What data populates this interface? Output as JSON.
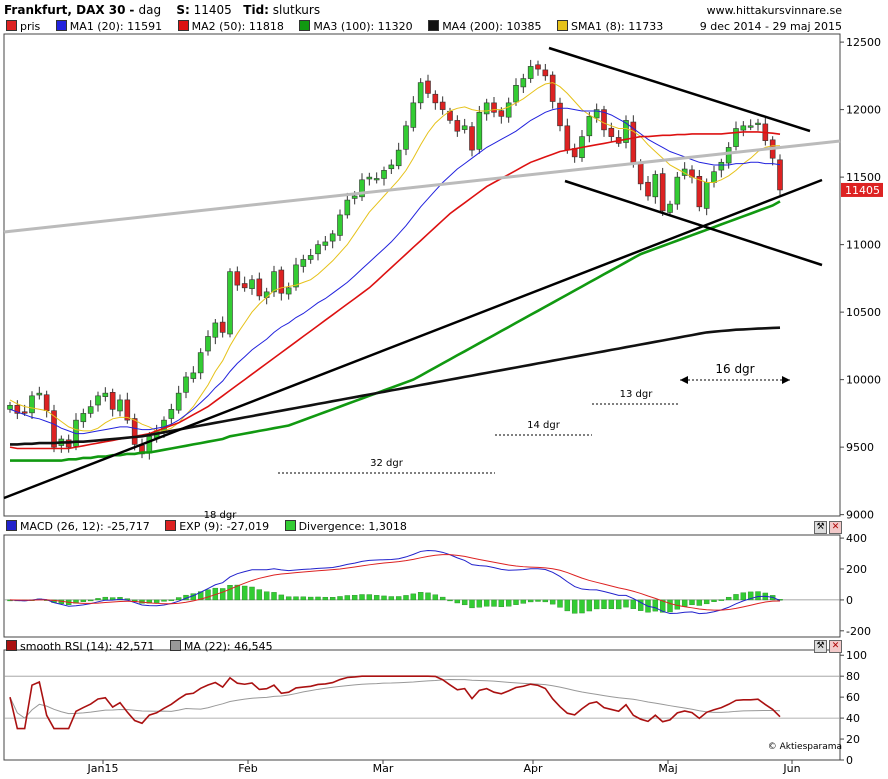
{
  "header": {
    "instrument": "Frankfurt, DAX 30",
    "interval_label": "dag",
    "close_label": "S:",
    "close_value": "11405",
    "time_label": "Tid:",
    "time_value": "slutkurs",
    "site": "www.hittakursvinnare.se",
    "date_range": "9 dec 2014 - 29 maj 2015"
  },
  "legend": {
    "price": "pris",
    "ma1": "MA1 (20): 11591",
    "ma2": "MA2 (50): 11818",
    "ma3": "MA3 (100): 11320",
    "ma4": "MA4 (200): 10385",
    "sma1": "SMA1 (8): 11733"
  },
  "colors": {
    "up_candle": "#33cc33",
    "down_candle": "#dd2222",
    "ma1": "#2222dd",
    "ma2": "#dd1111",
    "ma3": "#119911",
    "ma4": "#111111",
    "sma1": "#e6c21a",
    "macd": "#2222cc",
    "exp": "#dd2222",
    "divergence": "#33cc33",
    "rsi": "#aa1111",
    "rsi_ma": "#999999",
    "last_price_tag": "#dd2222"
  },
  "chart_data": [
    {
      "type": "candlestick",
      "panel": "price",
      "y_ticks": [
        9000,
        9500,
        10000,
        10500,
        11000,
        11500,
        12000,
        12500
      ],
      "ylim": [
        8990,
        12560
      ],
      "x_ticks": [
        "Jan15",
        "Feb",
        "Mar",
        "Apr",
        "Maj",
        "Jun"
      ],
      "last_price": "11405",
      "close": [
        9810,
        9750,
        9760,
        9880,
        9900,
        9770,
        9500,
        9560,
        9500,
        9700,
        9750,
        9800,
        9880,
        9900,
        9780,
        9850,
        9700,
        9520,
        9450,
        9580,
        9620,
        9700,
        9780,
        9900,
        10020,
        10050,
        10200,
        10320,
        10420,
        10350,
        10800,
        10700,
        10680,
        10740,
        10620,
        10650,
        10800,
        10640,
        10680,
        10850,
        10890,
        10920,
        11000,
        11020,
        11080,
        11220,
        11330,
        11360,
        11480,
        11500,
        11490,
        11550,
        11590,
        11700,
        11880,
        12050,
        12200,
        12120,
        12050,
        12000,
        11920,
        11840,
        11880,
        11700,
        11980,
        12050,
        11980,
        11950,
        12050,
        12180,
        12230,
        12320,
        12300,
        12250,
        12060,
        11880,
        11700,
        11650,
        11800,
        11950,
        12000,
        11850,
        11800,
        11750,
        11920,
        11600,
        11450,
        11360,
        11520,
        11250,
        11300,
        11500,
        11560,
        11500,
        11280,
        11460,
        11540,
        11610,
        11720,
        11860,
        11880,
        11880,
        11900,
        11770,
        11640,
        11405
      ],
      "ma1": [
        9780,
        9760,
        9740,
        9720,
        9710,
        9690,
        9670,
        9640,
        9620,
        9600,
        9600,
        9610,
        9620,
        9630,
        9640,
        9650,
        9650,
        9640,
        9630,
        9630,
        9640,
        9650,
        9670,
        9700,
        9740,
        9780,
        9830,
        9880,
        9940,
        9990,
        10060,
        10120,
        10170,
        10220,
        10260,
        10300,
        10350,
        10390,
        10420,
        10460,
        10490,
        10530,
        10570,
        10600,
        10640,
        10680,
        10720,
        10770,
        10820,
        10870,
        10920,
        10970,
        11020,
        11080,
        11140,
        11210,
        11280,
        11340,
        11400,
        11460,
        11510,
        11560,
        11600,
        11640,
        11680,
        11720,
        11750,
        11780,
        11810,
        11840,
        11880,
        11920,
        11950,
        11980,
        12000,
        12010,
        12010,
        12000,
        11990,
        11990,
        11990,
        11980,
        11960,
        11930,
        11900,
        11860,
        11820,
        11780,
        11750,
        11720,
        11690,
        11670,
        11650,
        11630,
        11610,
        11600,
        11590,
        11590,
        11590,
        11600,
        11600,
        11610,
        11610,
        11600,
        11600,
        11591
      ],
      "ma2": [
        9500,
        9490,
        9490,
        9490,
        9490,
        9490,
        9490,
        9490,
        9490,
        9500,
        9510,
        9520,
        9530,
        9540,
        9550,
        9560,
        9570,
        9580,
        9590,
        9600,
        9620,
        9640,
        9660,
        9680,
        9710,
        9740,
        9770,
        9800,
        9840,
        9880,
        9920,
        9960,
        10000,
        10040,
        10080,
        10120,
        10160,
        10200,
        10240,
        10280,
        10320,
        10360,
        10400,
        10440,
        10480,
        10520,
        10560,
        10600,
        10640,
        10680,
        10730,
        10780,
        10830,
        10880,
        10930,
        10980,
        11030,
        11080,
        11130,
        11180,
        11230,
        11270,
        11310,
        11350,
        11390,
        11430,
        11460,
        11490,
        11520,
        11550,
        11580,
        11610,
        11630,
        11650,
        11670,
        11690,
        11700,
        11710,
        11720,
        11730,
        11740,
        11750,
        11760,
        11770,
        11780,
        11790,
        11800,
        11800,
        11805,
        11810,
        11810,
        11815,
        11815,
        11820,
        11820,
        11820,
        11820,
        11820,
        11825,
        11830,
        11835,
        11835,
        11835,
        11830,
        11825,
        11818
      ],
      "ma3": [
        9400,
        9400,
        9400,
        9400,
        9400,
        9400,
        9400,
        9400,
        9410,
        9410,
        9420,
        9420,
        9430,
        9430,
        9440,
        9440,
        9450,
        9450,
        9460,
        9460,
        9470,
        9480,
        9490,
        9500,
        9510,
        9520,
        9530,
        9540,
        9550,
        9560,
        9580,
        9590,
        9600,
        9610,
        9620,
        9630,
        9640,
        9650,
        9660,
        9680,
        9700,
        9720,
        9740,
        9760,
        9780,
        9800,
        9820,
        9840,
        9860,
        9880,
        9900,
        9920,
        9940,
        9960,
        9980,
        10000,
        10030,
        10060,
        10090,
        10120,
        10150,
        10180,
        10210,
        10240,
        10270,
        10300,
        10330,
        10360,
        10390,
        10420,
        10450,
        10480,
        10510,
        10540,
        10570,
        10600,
        10630,
        10660,
        10690,
        10720,
        10750,
        10780,
        10810,
        10840,
        10870,
        10900,
        10930,
        10950,
        10970,
        10990,
        11010,
        11030,
        11050,
        11070,
        11090,
        11110,
        11130,
        11150,
        11170,
        11190,
        11210,
        11230,
        11250,
        11270,
        11290,
        11320
      ],
      "ma4": [
        9520,
        9520,
        9525,
        9525,
        9530,
        9530,
        9530,
        9535,
        9535,
        9540,
        9540,
        9545,
        9550,
        9555,
        9560,
        9565,
        9570,
        9575,
        9580,
        9590,
        9600,
        9610,
        9620,
        9630,
        9640,
        9650,
        9660,
        9670,
        9680,
        9690,
        9700,
        9710,
        9720,
        9730,
        9740,
        9750,
        9760,
        9770,
        9780,
        9790,
        9800,
        9810,
        9820,
        9830,
        9840,
        9850,
        9860,
        9870,
        9880,
        9890,
        9900,
        9910,
        9920,
        9930,
        9940,
        9950,
        9960,
        9970,
        9980,
        9990,
        10000,
        10010,
        10020,
        10030,
        10040,
        10050,
        10060,
        10070,
        10080,
        10090,
        10100,
        10110,
        10120,
        10130,
        10140,
        10150,
        10160,
        10170,
        10180,
        10190,
        10200,
        10210,
        10220,
        10230,
        10240,
        10250,
        10260,
        10270,
        10280,
        10290,
        10300,
        10310,
        10320,
        10330,
        10340,
        10350,
        10355,
        10360,
        10365,
        10370,
        10372,
        10375,
        10378,
        10380,
        10383,
        10385
      ],
      "sma1": [
        9850,
        9820,
        9800,
        9790,
        9780,
        9770,
        9730,
        9690,
        9650,
        9630,
        9620,
        9620,
        9640,
        9680,
        9710,
        9720,
        9720,
        9700,
        9670,
        9650,
        9620,
        9620,
        9640,
        9680,
        9740,
        9800,
        9880,
        9960,
        10060,
        10140,
        10250,
        10340,
        10420,
        10500,
        10560,
        10610,
        10660,
        10680,
        10690,
        10700,
        10720,
        10740,
        10780,
        10830,
        10880,
        10940,
        11000,
        11080,
        11160,
        11240,
        11300,
        11360,
        11420,
        11480,
        11550,
        11640,
        11740,
        11830,
        11900,
        11950,
        11990,
        12010,
        12020,
        12000,
        11990,
        11990,
        12000,
        12000,
        12020,
        12050,
        12080,
        12120,
        12160,
        12190,
        12200,
        12170,
        12120,
        12060,
        12000,
        11960,
        11930,
        11900,
        11880,
        11860,
        11860,
        11840,
        11800,
        11740,
        11690,
        11640,
        11590,
        11560,
        11530,
        11500,
        11480,
        11460,
        11460,
        11480,
        11510,
        11550,
        11600,
        11640,
        11690,
        11720,
        11733,
        11733
      ]
    },
    {
      "type": "line",
      "panel": "macd",
      "y_ticks": [
        -200,
        0,
        200,
        400
      ],
      "ylim": [
        -240,
        420
      ],
      "series": [
        {
          "name": "MACD (26, 12): -25,717"
        },
        {
          "name": "EXP (9): -27,019"
        },
        {
          "name": "Divergence: 1,3018"
        }
      ]
    },
    {
      "type": "line",
      "panel": "rsi",
      "y_ticks": [
        0,
        20,
        40,
        60,
        80,
        100
      ],
      "ylim": [
        0,
        105
      ],
      "series": [
        {
          "name": "smooth RSI (14): 42,571"
        },
        {
          "name": "MA (22): 46,545"
        }
      ]
    }
  ],
  "annotations": {
    "a18": "18 dgr",
    "a32": "32 dgr",
    "a14": "14 dgr",
    "a13": "13 dgr",
    "a16": "16 dgr"
  },
  "credit": "© Aktiesparama"
}
